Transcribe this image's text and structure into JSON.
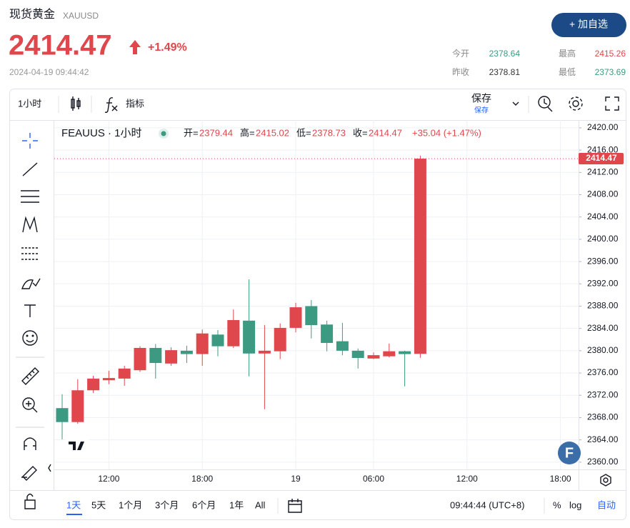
{
  "header": {
    "name": "现货黄金",
    "symbol": "XAUUSD",
    "price": 2414.47,
    "change": "+1.49%",
    "datetime": "2024-04-19 09:44:42",
    "button": "+ 加自选",
    "stats": [
      {
        "label": "今开",
        "value": 2378.64,
        "color": "#3d9a82"
      },
      {
        "label": "最高",
        "value": 2415.26,
        "color": "#e0474c"
      },
      {
        "label": "昨收",
        "value": 2378.81,
        "color": "#333333"
      },
      {
        "label": "最低",
        "value": 2373.69,
        "color": "#3d9a82"
      }
    ]
  },
  "toolbar": {
    "interval": "1小时",
    "indicators": "指标",
    "save": "保存",
    "save_sub": "保存"
  },
  "chart_data": {
    "type": "candlestick",
    "title": "FEAUUS · 1小时",
    "ohlc_labels": [
      "开=",
      "高=",
      "低=",
      "收="
    ],
    "change": "+35.04 (+1.47%)",
    "logo": "F",
    "categories": [
      null,
      null,
      null,
      "12:00",
      null,
      null,
      null,
      null,
      null,
      "18:00",
      null,
      null,
      null,
      null,
      null,
      "19",
      null,
      null,
      null,
      null,
      "06:00",
      null,
      null,
      null,
      null,
      null,
      "12:00",
      null,
      null,
      null,
      null,
      null,
      "18:00"
    ],
    "open": [
      2369.7,
      2367.2,
      2372.9,
      2374.7,
      2375.0,
      2376.5,
      2380.5,
      2377.7,
      2380.0,
      2379.4,
      2382.9,
      2380.8,
      2385.4,
      2379.5,
      2379.9,
      2384.1,
      2388.0,
      2384.7,
      2381.7,
      2380.0,
      2378.6,
      2379.0,
      2379.9,
      2379.44,
      null,
      null,
      null,
      null,
      null,
      null,
      null,
      null,
      null
    ],
    "high": [
      2372.2,
      2374.9,
      2375.5,
      2376.4,
      2377.3,
      2380.8,
      2381.2,
      2380.6,
      2380.9,
      2383.8,
      2383.7,
      2387.4,
      2392.8,
      2384.6,
      2384.9,
      2388.6,
      2389.1,
      2385.4,
      2385.0,
      2380.4,
      2379.7,
      2381.3,
      2380.0,
      2415.02,
      null,
      null,
      null,
      null,
      null,
      null,
      null,
      null,
      null
    ],
    "low": [
      2364.1,
      2366.9,
      2372.4,
      2374.0,
      2373.7,
      2376.2,
      2375.0,
      2377.3,
      2377.8,
      2377.3,
      2379.0,
      2380.5,
      2375.4,
      2369.5,
      2378.5,
      2383.3,
      2382.2,
      2379.9,
      2379.2,
      2376.8,
      2378.5,
      2378.8,
      2373.6,
      2378.73,
      null,
      null,
      null,
      null,
      null,
      null,
      null,
      null,
      null
    ],
    "close": [
      2367.2,
      2372.9,
      2375.0,
      2375.1,
      2376.8,
      2380.5,
      2377.8,
      2380.1,
      2379.4,
      2383.1,
      2380.8,
      2385.5,
      2379.5,
      2380.0,
      2384.1,
      2387.8,
      2384.6,
      2381.4,
      2380.0,
      2378.7,
      2379.2,
      2379.9,
      2379.4,
      2414.47,
      null,
      null,
      null,
      null,
      null,
      null,
      null,
      null,
      null
    ],
    "up_color": "#e0474c",
    "down_color": "#3d9a82",
    "ylim": [
      2358.7,
      2421.4
    ],
    "yticks": [
      {
        "value": 2360,
        "label": "2360.00"
      },
      {
        "value": 2364,
        "label": "2364.00"
      },
      {
        "value": 2368,
        "label": "2368.00"
      },
      {
        "value": 2372,
        "label": "2372.00"
      },
      {
        "value": 2376,
        "label": "2376.00"
      },
      {
        "value": 2380,
        "label": "2380.00"
      },
      {
        "value": 2384,
        "label": "2384.00"
      },
      {
        "value": 2388,
        "label": "2388.00"
      },
      {
        "value": 2392,
        "label": "2392.00"
      },
      {
        "value": 2396,
        "label": "2396.00"
      },
      {
        "value": 2400,
        "label": "2400.00"
      },
      {
        "value": 2404,
        "label": "2404.00"
      },
      {
        "value": 2408,
        "label": "2408.00"
      },
      {
        "value": 2412,
        "label": "2412.00"
      },
      {
        "value": 2416,
        "label": "2416.00"
      },
      {
        "value": 2420,
        "label": "2420.00"
      }
    ],
    "grid": true
  },
  "footer": {
    "ranges": [
      "1天",
      "5天",
      "1个月",
      "3个月",
      "6个月",
      "1年",
      "All"
    ],
    "time": "09:44:44 (UTC+8)",
    "percent": "%",
    "log": "log",
    "auto": "自动"
  }
}
